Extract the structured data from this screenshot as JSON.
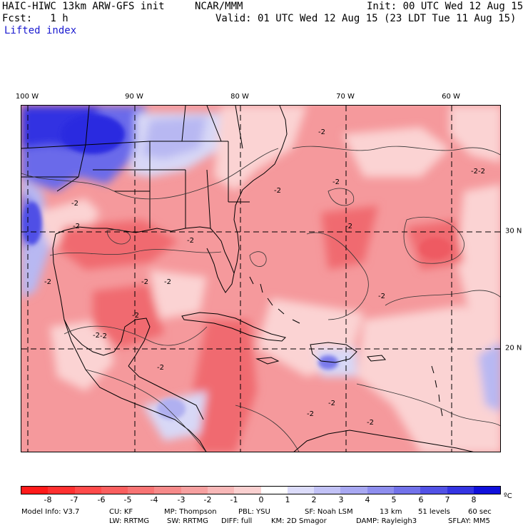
{
  "header": {
    "model": "HAIC-HIWC 13km ARW-GFS init",
    "org": "NCAR/MMM",
    "init": "Init: 00 UTC Wed 12 Aug 15",
    "fcst": "Fcst:   1 h",
    "valid": "Valid: 01 UTC Wed 12 Aug 15 (23 LDT Tue 11 Aug 15)",
    "field": "Lifted index"
  },
  "map": {
    "lon_labels": [
      "100 W",
      "90 W",
      "80 W",
      "70 W",
      "60 W"
    ],
    "lat_labels": [
      "30 N",
      "20 N"
    ],
    "contour_labels": [
      "-2",
      "-2",
      "-2",
      "-2",
      "-2",
      "-2",
      "-2",
      "-2",
      "-2",
      "-2",
      "-2",
      "-2",
      "-2",
      "-2",
      "-2",
      "-2",
      "-2",
      "-2",
      "-2",
      "-2"
    ],
    "colors": {
      "strong_negative": "#f06a70",
      "moderate_negative": "#f5999c",
      "weak_negative": "#fbd3d3",
      "neutral": "#ffffff",
      "weak_positive": "#d8d8f6",
      "moderate_positive": "#9c9cf0",
      "strong_positive": "#3030e6"
    }
  },
  "colorbar": {
    "labels": [
      "-8",
      "-7",
      "-6",
      "-5",
      "-4",
      "-3",
      "-2",
      "-1",
      "0",
      "1",
      "2",
      "3",
      "4",
      "5",
      "6",
      "7",
      "8"
    ],
    "unit": "ºC",
    "colors": [
      "#ff1a1a",
      "#ff3030",
      "#ff4a4a",
      "#fa5f5f",
      "#f87474",
      "#f68a8a",
      "#f6a0a0",
      "#f8b8b8",
      "#fad0d0",
      "#ffffff",
      "#dcdcfa",
      "#c2c2f6",
      "#a8a8f2",
      "#8e8eee",
      "#7272ea",
      "#5252e6",
      "#3434e2",
      "#1010dc"
    ]
  },
  "footer": {
    "line1": [
      "Model Info: V3.7",
      "CU: KF",
      "MP: Thompson",
      "PBL: YSU",
      "SF: Noah LSM",
      "13 km",
      "51 levels",
      "60 sec"
    ],
    "line2": [
      "LW: RRTMG",
      "SW: RRTMG",
      "DIFF: full",
      "KM: 2D Smagor",
      "DAMP: Rayleigh3",
      "SFLAY: MM5"
    ]
  }
}
